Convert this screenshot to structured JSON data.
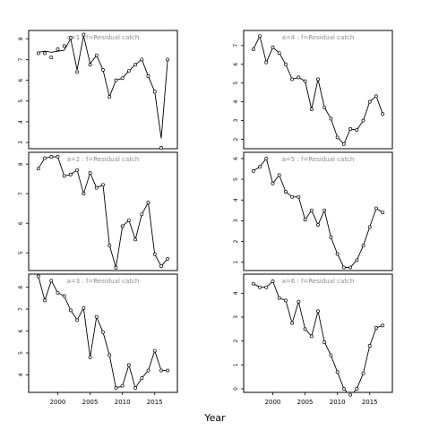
{
  "xlabel": "Year",
  "chart_data": [
    {
      "type": "scatter",
      "title": "a=1 : f=Residual catch",
      "xlim": [
        1995.5,
        2018.5
      ],
      "ylim": [
        2.7,
        8.4
      ],
      "yticks": [
        3,
        4,
        5,
        6,
        7,
        8
      ],
      "xticks": [
        2000,
        2005,
        2010,
        2015
      ],
      "show_xticks": false,
      "points": {
        "x": [
          1997,
          1998,
          1999,
          2000,
          2001,
          2002,
          2003,
          2004,
          2005,
          2006,
          2007,
          2008,
          2009,
          2010,
          2011,
          2012,
          2013,
          2014,
          2015,
          2016,
          2017
        ],
        "y": [
          7.3,
          7.3,
          7.1,
          7.5,
          7.65,
          8.05,
          6.4,
          8.2,
          6.75,
          7.2,
          6.5,
          5.2,
          6.0,
          6.1,
          6.45,
          6.75,
          7.0,
          6.2,
          5.45,
          2.75,
          7.0
        ]
      },
      "line": {
        "x": [
          1997,
          1998,
          1999,
          2000,
          2001,
          2002,
          2003,
          2004,
          2005,
          2006,
          2007,
          2008,
          2009,
          2010,
          2011,
          2012,
          2013,
          2014,
          2015,
          2016,
          2017
        ],
        "y": [
          7.35,
          7.4,
          7.35,
          7.4,
          7.45,
          8.0,
          6.5,
          8.15,
          6.8,
          7.2,
          6.5,
          5.2,
          6.0,
          6.1,
          6.45,
          6.75,
          7.0,
          6.2,
          5.45,
          3.2,
          7.0
        ]
      }
    },
    {
      "type": "line",
      "title": "a=4 : f=Residual catch",
      "xlim": [
        1995.5,
        2018.5
      ],
      "ylim": [
        1.5,
        7.8
      ],
      "yticks": [
        2,
        3,
        4,
        5,
        6,
        7
      ],
      "xticks": [
        2000,
        2005,
        2010,
        2015
      ],
      "show_xticks": false,
      "points": {
        "x": [
          1997,
          1998,
          1999,
          2000,
          2001,
          2002,
          2003,
          2004,
          2005,
          2006,
          2007,
          2008,
          2009,
          2010,
          2011,
          2012,
          2013,
          2014,
          2015,
          2016,
          2017
        ],
        "y": [
          6.8,
          7.5,
          6.1,
          6.9,
          6.6,
          6.0,
          5.2,
          5.3,
          5.1,
          3.6,
          5.2,
          3.7,
          3.1,
          2.1,
          1.75,
          2.55,
          2.5,
          3.0,
          4.0,
          4.3,
          3.35
        ]
      },
      "line": {
        "x": [
          1997,
          1998,
          1999,
          2000,
          2001,
          2002,
          2003,
          2004,
          2005,
          2006,
          2007,
          2008,
          2009,
          2010,
          2011,
          2012,
          2013,
          2014,
          2015,
          2016,
          2017
        ],
        "y": [
          6.8,
          7.5,
          6.1,
          6.9,
          6.6,
          6.0,
          5.2,
          5.3,
          5.1,
          3.6,
          5.2,
          3.7,
          3.1,
          2.1,
          1.75,
          2.55,
          2.5,
          3.0,
          4.0,
          4.3,
          3.35
        ]
      }
    },
    {
      "type": "line",
      "title": "a=2 : f=Residual catch",
      "xlim": [
        1995.5,
        2018.5
      ],
      "ylim": [
        4.4,
        8.4
      ],
      "yticks": [
        5,
        6,
        7,
        8
      ],
      "xticks": [
        2000,
        2005,
        2010,
        2015
      ],
      "show_xticks": false,
      "points": {
        "x": [
          1997,
          1998,
          1999,
          2000,
          2001,
          2002,
          2003,
          2004,
          2005,
          2006,
          2007,
          2008,
          2009,
          2010,
          2011,
          2012,
          2013,
          2014,
          2015,
          2016,
          2017
        ],
        "y": [
          7.85,
          8.2,
          8.25,
          8.25,
          7.6,
          7.65,
          7.8,
          7.0,
          7.7,
          7.2,
          7.3,
          5.25,
          4.5,
          5.9,
          6.1,
          5.45,
          6.3,
          6.7,
          4.95,
          4.55,
          4.8
        ]
      },
      "line": {
        "x": [
          1997,
          1998,
          1999,
          2000,
          2001,
          2002,
          2003,
          2004,
          2005,
          2006,
          2007,
          2008,
          2009,
          2010,
          2011,
          2012,
          2013,
          2014,
          2015,
          2016,
          2017
        ],
        "y": [
          7.85,
          8.2,
          8.25,
          8.25,
          7.6,
          7.65,
          7.8,
          7.0,
          7.7,
          7.2,
          7.3,
          5.25,
          4.5,
          5.9,
          6.1,
          5.45,
          6.3,
          6.7,
          4.95,
          4.55,
          4.8
        ]
      }
    },
    {
      "type": "line",
      "title": "a=5 : f=Residual catch",
      "xlim": [
        1995.5,
        2018.5
      ],
      "ylim": [
        0.6,
        6.3
      ],
      "yticks": [
        1,
        2,
        3,
        4,
        5,
        6
      ],
      "xticks": [
        2000,
        2005,
        2010,
        2015
      ],
      "show_xticks": false,
      "points": {
        "x": [
          1997,
          1998,
          1999,
          2000,
          2001,
          2002,
          2003,
          2004,
          2005,
          2006,
          2007,
          2008,
          2009,
          2010,
          2011,
          2012,
          2013,
          2014,
          2015,
          2016,
          2017
        ],
        "y": [
          5.4,
          5.6,
          6.0,
          4.8,
          5.2,
          4.4,
          4.15,
          4.15,
          3.05,
          3.5,
          2.8,
          3.5,
          2.2,
          1.4,
          0.75,
          0.75,
          1.1,
          1.8,
          2.7,
          3.6,
          3.4
        ]
      },
      "line": {
        "x": [
          1997,
          1998,
          1999,
          2000,
          2001,
          2002,
          2003,
          2004,
          2005,
          2006,
          2007,
          2008,
          2009,
          2010,
          2011,
          2012,
          2013,
          2014,
          2015,
          2016,
          2017
        ],
        "y": [
          5.4,
          5.6,
          6.0,
          4.8,
          5.2,
          4.4,
          4.15,
          4.15,
          3.05,
          3.5,
          2.8,
          3.5,
          2.2,
          1.4,
          0.75,
          0.75,
          1.1,
          1.8,
          2.7,
          3.6,
          3.4
        ]
      }
    },
    {
      "type": "line",
      "title": "a=3 : f=Residual catch",
      "xlim": [
        1995.5,
        2018.5
      ],
      "ylim": [
        3.2,
        8.6
      ],
      "yticks": [
        4,
        5,
        6,
        7,
        8
      ],
      "xticks": [
        2000,
        2005,
        2010,
        2015
      ],
      "show_xticks": true,
      "points": {
        "x": [
          1997,
          1998,
          1999,
          2000,
          2001,
          2002,
          2003,
          2004,
          2005,
          2006,
          2007,
          2008,
          2009,
          2010,
          2011,
          2012,
          2013,
          2014,
          2015,
          2016,
          2017
        ],
        "y": [
          8.5,
          7.4,
          8.3,
          7.75,
          7.6,
          6.95,
          6.5,
          7.05,
          4.8,
          6.65,
          5.95,
          4.9,
          3.4,
          3.5,
          4.45,
          3.4,
          3.85,
          4.2,
          5.1,
          4.2,
          4.2
        ]
      },
      "line": {
        "x": [
          1997,
          1998,
          1999,
          2000,
          2001,
          2002,
          2003,
          2004,
          2005,
          2006,
          2007,
          2008,
          2009,
          2010,
          2011,
          2012,
          2013,
          2014,
          2015,
          2016,
          2017
        ],
        "y": [
          8.5,
          7.4,
          8.3,
          7.75,
          7.6,
          6.95,
          6.5,
          7.05,
          4.8,
          6.65,
          5.95,
          4.9,
          3.4,
          3.5,
          4.45,
          3.4,
          3.85,
          4.2,
          5.1,
          4.2,
          4.2
        ]
      }
    },
    {
      "type": "line",
      "title": "a=6 : f=Residual catch",
      "xlim": [
        1995.5,
        2018.5
      ],
      "ylim": [
        -0.15,
        4.8
      ],
      "yticks": [
        0,
        1,
        2,
        3,
        4
      ],
      "xticks": [
        2000,
        2005,
        2010,
        2015
      ],
      "show_xticks": true,
      "points": {
        "x": [
          1997,
          1998,
          1999,
          2000,
          2001,
          2002,
          2003,
          2004,
          2005,
          2006,
          2007,
          2008,
          2009,
          2010,
          2011,
          2012,
          2013,
          2014,
          2015,
          2016,
          2017
        ],
        "y": [
          4.4,
          4.25,
          4.25,
          4.5,
          3.8,
          3.7,
          2.75,
          3.65,
          2.5,
          2.2,
          3.25,
          1.95,
          1.4,
          0.7,
          0.0,
          -0.25,
          0.0,
          0.65,
          1.8,
          2.55,
          2.65
        ]
      },
      "line": {
        "x": [
          1997,
          1998,
          1999,
          2000,
          2001,
          2002,
          2003,
          2004,
          2005,
          2006,
          2007,
          2008,
          2009,
          2010,
          2011,
          2011.5,
          2012,
          2012.5,
          2013,
          2014,
          2015,
          2016,
          2017
        ],
        "y": [
          4.4,
          4.25,
          4.25,
          4.5,
          3.8,
          3.7,
          2.75,
          3.65,
          2.5,
          2.2,
          3.25,
          1.95,
          1.4,
          0.7,
          0.0,
          -0.15,
          -0.22,
          -0.15,
          0.0,
          0.65,
          1.8,
          2.55,
          2.65
        ]
      }
    }
  ]
}
